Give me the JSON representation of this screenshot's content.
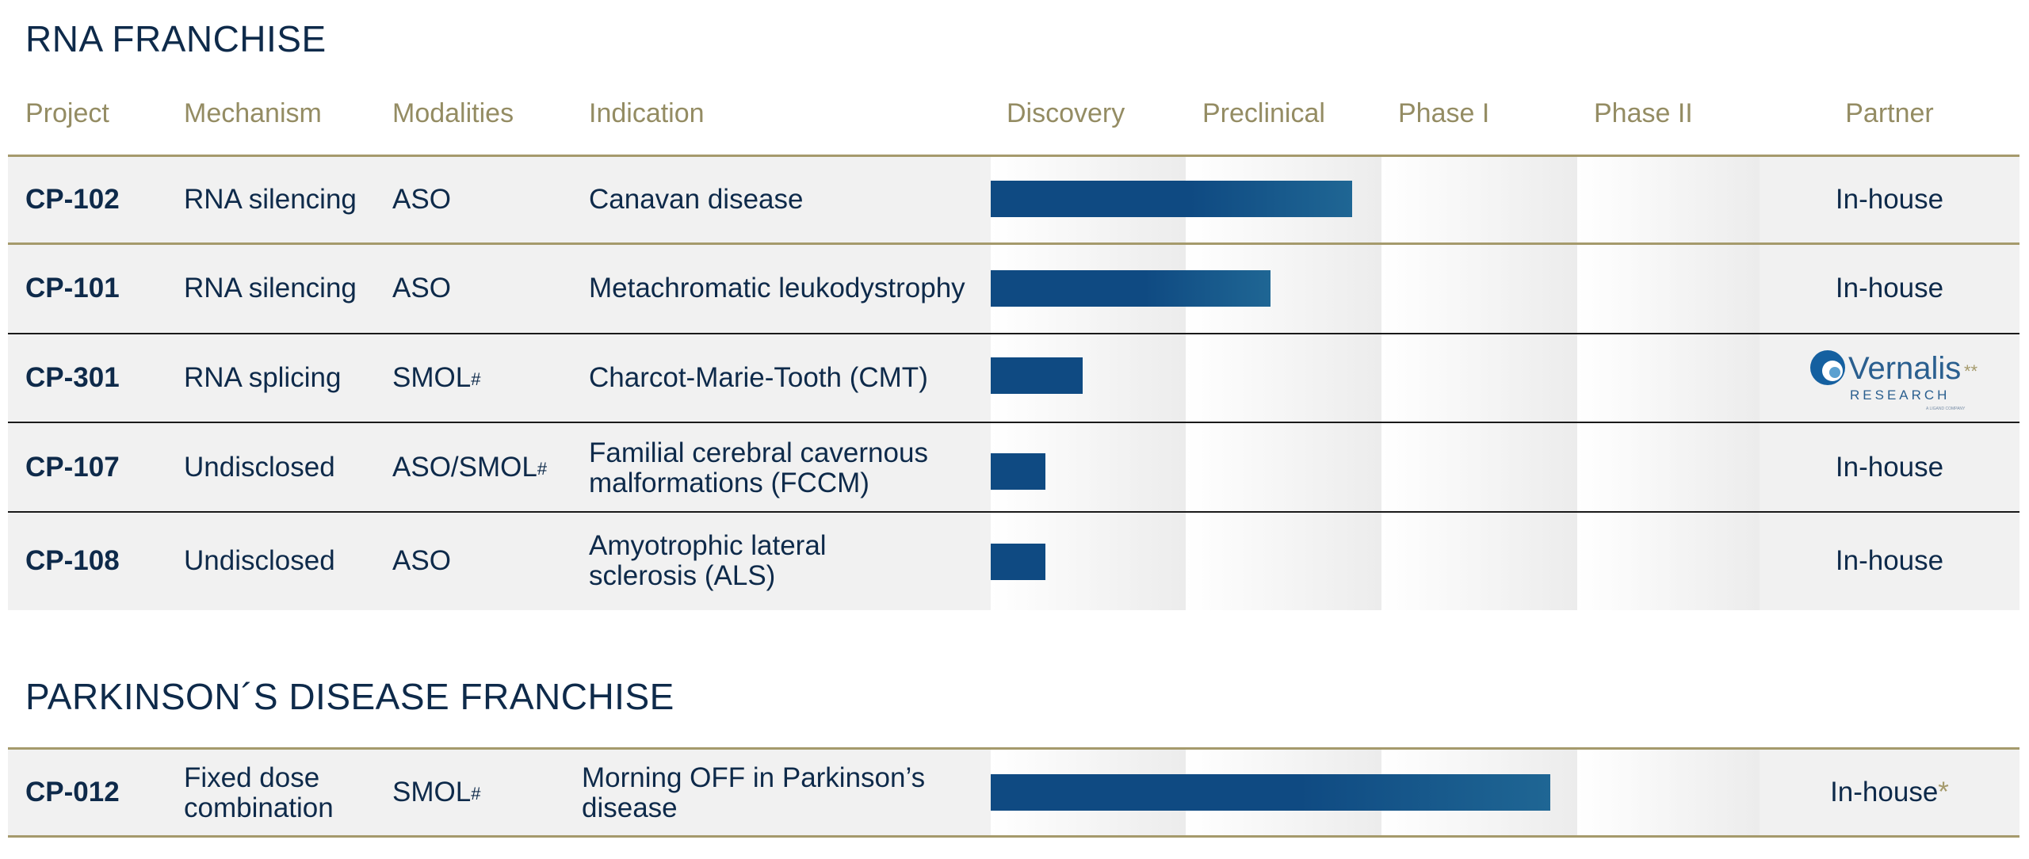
{
  "sections": {
    "rna_title": "RNA FRANCHISE",
    "pd_title": "PARKINSON´S DISEASE FRANCHISE"
  },
  "columns": {
    "project": "Project",
    "mechanism": "Mechanism",
    "modalities": "Modalities",
    "indication": "Indication",
    "discovery": "Discovery",
    "preclinical": "Preclinical",
    "phase1": "Phase I",
    "phase2": "Phase II",
    "partner": "Partner"
  },
  "rna_rows": [
    {
      "project": "CP-102",
      "mechanism": "RNA silencing",
      "mechanism2": "",
      "modality": "ASO",
      "modality_sup": "",
      "indication": "Canavan disease",
      "indication2": "",
      "partner": "In-house",
      "progress_stages": 1.85
    },
    {
      "project": "CP-101",
      "mechanism": "RNA silencing",
      "mechanism2": "",
      "modality": "ASO",
      "modality_sup": "",
      "indication": "Metachromatic leukodystrophy",
      "indication2": "",
      "partner": "In-house",
      "progress_stages": 1.43
    },
    {
      "project": "CP-301",
      "mechanism": "RNA splicing",
      "mechanism2": "",
      "modality": "SMOL",
      "modality_sup": "#",
      "indication": "Charcot-Marie-Tooth (CMT)",
      "indication2": "",
      "partner": "",
      "progress_stages": 0.47
    },
    {
      "project": "CP-107",
      "mechanism": "Undisclosed",
      "mechanism2": "",
      "modality": "ASO/SMOL",
      "modality_sup": "#",
      "indication": "Familial cerebral cavernous",
      "indication2": "malformations (FCCM)",
      "partner": "In-house",
      "progress_stages": 0.28
    },
    {
      "project": "CP-108",
      "mechanism": "Undisclosed",
      "mechanism2": "",
      "modality": "ASO",
      "modality_sup": "",
      "indication": "Amyotrophic lateral",
      "indication2": "sclerosis  (ALS)",
      "partner": "In-house",
      "progress_stages": 0.28
    }
  ],
  "pd_rows": [
    {
      "project": "CP-012",
      "mechanism": "Fixed dose",
      "mechanism2": "combination",
      "modality": "SMOL",
      "modality_sup": "#",
      "indication": "Morning OFF in Parkinson’s",
      "indication2": "disease",
      "partner": "In-house",
      "partner_mark": "*",
      "progress_stages": 2.86
    }
  ],
  "vernalis_logo": {
    "name": "Vernalis",
    "mark": "**",
    "sub": "RESEARCH",
    "tiny": "A LIGAND COMPANY"
  },
  "colors": {
    "navy_text": "#0e2a4a",
    "gold": "#948c63",
    "bar_dark": "#0f4a82",
    "bar_light": "#1f6694"
  }
}
